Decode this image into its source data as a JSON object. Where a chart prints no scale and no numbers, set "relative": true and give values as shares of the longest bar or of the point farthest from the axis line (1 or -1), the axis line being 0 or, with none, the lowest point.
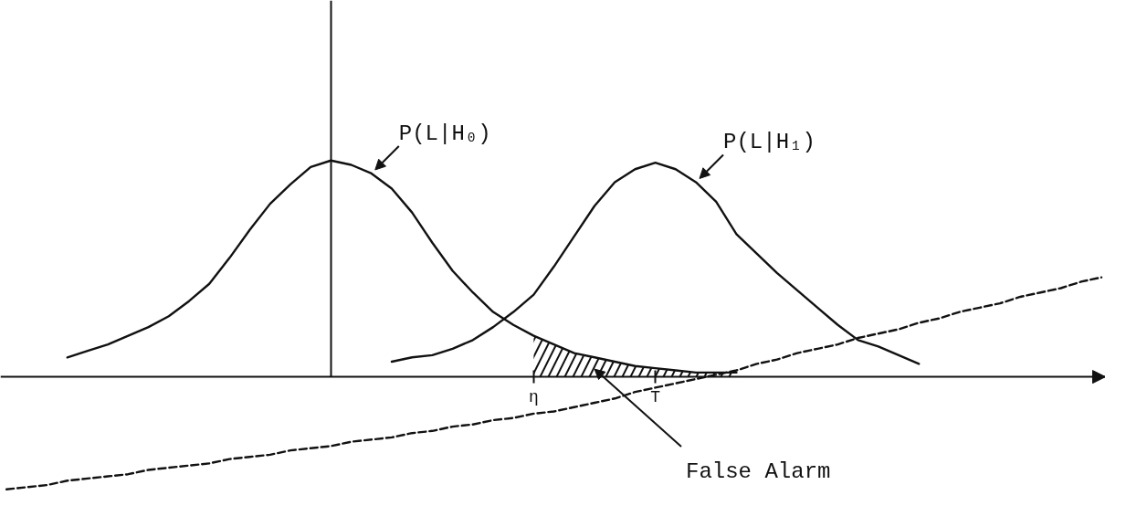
{
  "chart_data": {
    "type": "line",
    "relative": true,
    "categories": [
      null,
      null,
      null,
      null,
      null,
      null,
      null,
      null,
      null,
      null,
      null,
      null,
      null,
      null,
      null,
      null,
      null,
      null,
      null,
      null,
      null,
      null,
      null,
      null,
      null,
      null,
      "η",
      null,
      null,
      null,
      null,
      null,
      "T",
      null,
      null,
      null,
      null,
      null,
      null,
      null,
      null,
      null,
      null,
      null,
      null,
      null,
      null,
      null,
      null,
      null,
      null,
      null,
      null,
      null,
      null
    ],
    "tick_labels": "x",
    "series": [
      {
        "name": "P(L|H₀)",
        "color": "#111111",
        "values": [
          null,
          null,
          null,
          0.09,
          0.12,
          0.15,
          0.19,
          0.23,
          0.28,
          0.35,
          0.43,
          0.55,
          0.68,
          0.8,
          0.89,
          0.97,
          1,
          0.98,
          0.94,
          0.87,
          0.76,
          0.62,
          0.49,
          0.39,
          0.3,
          0.24,
          0.19,
          0.15,
          0.11,
          0.09,
          0.07,
          0.05,
          0.04,
          0.03,
          0.02,
          0.02,
          0.02,
          null,
          null,
          null,
          null,
          null,
          null,
          null,
          null,
          null,
          null,
          null,
          null,
          null,
          null,
          null,
          null,
          null,
          null
        ]
      },
      {
        "name": "P(L|H₁)",
        "color": "#111111",
        "values": [
          null,
          null,
          null,
          null,
          null,
          null,
          null,
          null,
          null,
          null,
          null,
          null,
          null,
          null,
          null,
          null,
          null,
          null,
          null,
          0.07,
          0.09,
          0.1,
          0.13,
          0.17,
          0.23,
          0.3,
          0.38,
          0.51,
          0.65,
          0.79,
          0.9,
          0.96,
          0.99,
          0.96,
          0.9,
          0.81,
          0.66,
          0.57,
          0.48,
          0.4,
          0.32,
          0.24,
          0.17,
          0.14,
          0.1,
          0.06,
          null,
          null,
          null,
          null,
          null,
          null,
          null,
          null,
          null
        ]
      },
      {
        "name": "False Alarm",
        "type": "area",
        "color": "#111111",
        "values": [
          null,
          null,
          null,
          null,
          null,
          null,
          null,
          null,
          null,
          null,
          null,
          null,
          null,
          null,
          null,
          null,
          null,
          null,
          null,
          null,
          null,
          null,
          null,
          null,
          null,
          null,
          0.19,
          0.15,
          0.11,
          0.09,
          0.07,
          0.05,
          0.04,
          0.03,
          0.02,
          0.02,
          0.02,
          null,
          null,
          null,
          null,
          null,
          null,
          null,
          null,
          null,
          null,
          null,
          null,
          null,
          null,
          null,
          null,
          null,
          null
        ]
      },
      {
        "color": "#111111",
        "line_style": "dashed",
        "values": [
          -0.52,
          -0.51,
          -0.5,
          -0.48,
          -0.47,
          -0.46,
          -0.45,
          -0.43,
          -0.42,
          -0.41,
          -0.4,
          -0.38,
          -0.37,
          -0.36,
          -0.34,
          -0.33,
          -0.32,
          -0.3,
          -0.29,
          -0.28,
          -0.26,
          -0.25,
          -0.23,
          -0.22,
          -0.2,
          -0.19,
          -0.17,
          -0.16,
          -0.14,
          -0.12,
          -0.1,
          -0.07,
          -0.05,
          -0.03,
          -0.01,
          0.01,
          0.03,
          0.06,
          0.08,
          0.11,
          0.13,
          0.15,
          0.18,
          0.2,
          0.22,
          0.25,
          0.27,
          0.3,
          0.32,
          0.34,
          0.37,
          0.39,
          0.41,
          0.44,
          0.46
        ]
      }
    ]
  }
}
